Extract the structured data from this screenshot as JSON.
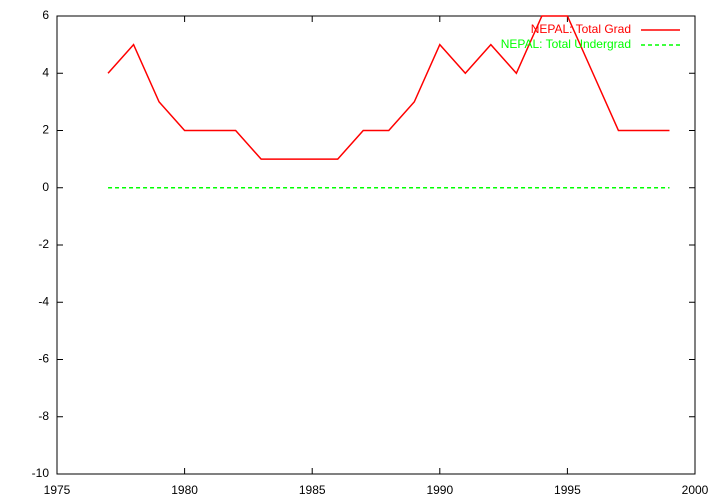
{
  "chart_data": {
    "type": "line",
    "x": [
      1977,
      1978,
      1979,
      1980,
      1981,
      1982,
      1983,
      1984,
      1985,
      1986,
      1987,
      1988,
      1989,
      1990,
      1991,
      1992,
      1993,
      1994,
      1995,
      1996,
      1997,
      1998,
      1999
    ],
    "series": [
      {
        "name": "NEPAL: Total Grad",
        "color": "#ff0000",
        "values": [
          4,
          5,
          3,
          2,
          2,
          2,
          1,
          1,
          1,
          1,
          2,
          2,
          3,
          5,
          4,
          5,
          4,
          6,
          6,
          4,
          2,
          2,
          2
        ]
      },
      {
        "name": "NEPAL: Total Undergrad",
        "color": "#00ff00",
        "dashed": true,
        "values": [
          0,
          0,
          0,
          0,
          0,
          0,
          0,
          0,
          0,
          0,
          0,
          0,
          0,
          0,
          0,
          0,
          0,
          0,
          0,
          0,
          0,
          0,
          0
        ]
      }
    ],
    "xlim": [
      1975,
      2000
    ],
    "xticks": [
      1975,
      1980,
      1985,
      1990,
      1995,
      2000
    ],
    "ylim": [
      -10,
      6
    ],
    "yticks": [
      -10,
      -8,
      -6,
      -4,
      -2,
      0,
      2,
      4,
      6
    ],
    "legend": "top-right"
  }
}
